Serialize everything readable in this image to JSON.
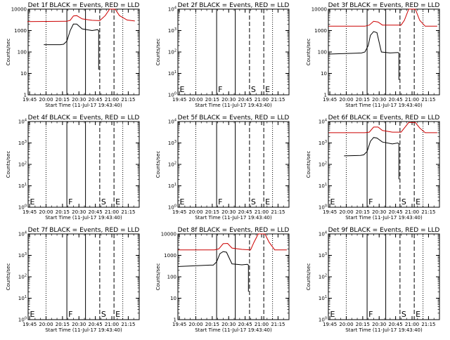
{
  "chart_data": [
    {
      "type": "line",
      "title": "Det 1f BLACK = Events, RED = LLD",
      "xlabel": "Start Time (11-Jul-17 19:43:40)",
      "ylabel": "Counts/sec",
      "yscale": "log",
      "ylim": [
        1,
        10000
      ],
      "ytick_labels": [
        "1",
        "10",
        "100",
        "1000",
        "10000"
      ],
      "xlim": [
        "19:43:40",
        "21:25:00"
      ],
      "xtick_labels": [
        "19:45",
        "20:00",
        "20:15",
        "20:30",
        "20:45",
        "21:00",
        "21:15"
      ],
      "markers": [
        {
          "time": "20:00",
          "label": "",
          "style": "dotted"
        },
        {
          "time": "20:19",
          "label": "",
          "style": "solid"
        },
        {
          "time": "20:36",
          "label": "",
          "style": "solid"
        },
        {
          "time": "20:49",
          "label": "",
          "style": "dashed"
        },
        {
          "time": "21:02",
          "label": "",
          "style": "dashed"
        },
        {
          "time": "21:10",
          "label": "",
          "style": "dotted"
        }
      ],
      "series": [
        {
          "color": "#000000",
          "x": [
            "19:58",
            "20:13",
            "20:16",
            "20:19",
            "20:22",
            "20:25",
            "20:28",
            "20:33",
            "20:42",
            "20:47",
            "20:48",
            "20:48"
          ],
          "y": [
            220,
            220,
            230,
            320,
            1000,
            2000,
            2000,
            1200,
            1000,
            1100,
            1000,
            15
          ]
        },
        {
          "color": "#cc0000",
          "x": [
            "19:43",
            "20:19",
            "20:22",
            "20:25",
            "20:28",
            "20:33",
            "20:42",
            "20:49",
            "20:54",
            "20:58",
            "21:03",
            "21:07",
            "21:14",
            "21:21"
          ],
          "y": [
            2600,
            2700,
            3000,
            4800,
            5000,
            3500,
            3000,
            2900,
            5000,
            10500,
            10500,
            5000,
            3100,
            2800
          ]
        }
      ]
    },
    {
      "type": "line",
      "title": "Det 2f BLACK = Events, RED = LLD",
      "xlabel": "Start Time (11-Jul-17 19:43:40)",
      "ylabel": "Counts/sec",
      "yscale": "log",
      "ylim": [
        1,
        10000
      ],
      "ytick_labels": [
        "10^0",
        "10^1",
        "10^2",
        "10^3",
        "10^4"
      ],
      "xlim": [
        "19:43:40",
        "21:25:00"
      ],
      "xtick_labels": [
        "19:45",
        "20:00",
        "20:15",
        "20:30",
        "20:45",
        "21:00",
        "21:15"
      ],
      "markers": [
        {
          "time": "19:44",
          "label": "E",
          "style": "none"
        },
        {
          "time": "20:00",
          "label": "",
          "style": "dotted"
        },
        {
          "time": "20:19",
          "label": "F",
          "style": "solid"
        },
        {
          "time": "20:36",
          "label": "",
          "style": "solid"
        },
        {
          "time": "20:49",
          "label": "S",
          "style": "dashed"
        },
        {
          "time": "21:02",
          "label": "E",
          "style": "dashed"
        },
        {
          "time": "21:10",
          "label": "",
          "style": "dotted"
        }
      ],
      "series": []
    },
    {
      "type": "line",
      "title": "Det 3f BLACK = Events, RED = LLD",
      "xlabel": "Start Time (11-Jul-17 19:43:40)",
      "ylabel": "Counts/sec",
      "yscale": "log",
      "ylim": [
        1,
        10000
      ],
      "ytick_labels": [
        "1",
        "10",
        "100",
        "1000",
        "10000"
      ],
      "xlim": [
        "19:43:40",
        "21:25:00"
      ],
      "xtick_labels": [
        "19:45",
        "20:00",
        "20:15",
        "20:30",
        "20:45",
        "21:00",
        "21:15"
      ],
      "markers": [
        {
          "time": "20:00",
          "label": "",
          "style": "dotted"
        },
        {
          "time": "20:19",
          "label": "",
          "style": "solid"
        },
        {
          "time": "20:36",
          "label": "",
          "style": "solid"
        },
        {
          "time": "20:49",
          "label": "",
          "style": "dashed"
        },
        {
          "time": "21:02",
          "label": "",
          "style": "dashed"
        },
        {
          "time": "21:10",
          "label": "",
          "style": "dotted"
        }
      ],
      "series": [
        {
          "color": "#000000",
          "x": [
            "19:44",
            "20:14",
            "20:17",
            "20:20",
            "20:22",
            "20:25",
            "20:28",
            "20:32",
            "20:40",
            "20:47",
            "20:48",
            "20:48"
          ],
          "y": [
            80,
            90,
            100,
            200,
            600,
            900,
            800,
            100,
            90,
            95,
            90,
            5
          ]
        },
        {
          "color": "#cc0000",
          "x": [
            "19:44",
            "20:17",
            "20:21",
            "20:25",
            "20:29",
            "20:33",
            "20:42",
            "20:50",
            "20:53",
            "20:57",
            "21:03",
            "21:07",
            "21:12",
            "21:23"
          ],
          "y": [
            1600,
            1600,
            1800,
            2700,
            2500,
            1800,
            1800,
            1800,
            3000,
            10500,
            10500,
            3000,
            1600,
            1600
          ]
        }
      ]
    },
    {
      "type": "line",
      "title": "Det 4f BLACK = Events, RED = LLD",
      "xlabel": "Start Time (11-Jul-17 19:43:40)",
      "ylabel": "Counts/sec",
      "yscale": "log",
      "ylim": [
        1,
        10000
      ],
      "ytick_labels": [
        "10^0",
        "10^1",
        "10^2",
        "10^3",
        "10^4"
      ],
      "xlim": [
        "19:43:40",
        "21:25:00"
      ],
      "xtick_labels": [
        "19:45",
        "20:00",
        "20:15",
        "20:30",
        "20:45",
        "21:00",
        "21:15"
      ],
      "markers": [
        {
          "time": "19:44",
          "label": "E",
          "style": "none"
        },
        {
          "time": "20:00",
          "label": "",
          "style": "dotted"
        },
        {
          "time": "20:19",
          "label": "F",
          "style": "solid"
        },
        {
          "time": "20:36",
          "label": "",
          "style": "solid"
        },
        {
          "time": "20:49",
          "label": "S",
          "style": "dashed"
        },
        {
          "time": "21:02",
          "label": "E",
          "style": "dashed"
        },
        {
          "time": "21:10",
          "label": "",
          "style": "dotted"
        }
      ],
      "series": []
    },
    {
      "type": "line",
      "title": "Det 5f BLACK = Events, RED = LLD",
      "xlabel": "Start Time (11-Jul-17 19:43:40)",
      "ylabel": "Counts/sec",
      "yscale": "log",
      "ylim": [
        1,
        10000
      ],
      "ytick_labels": [
        "10^0",
        "10^1",
        "10^2",
        "10^3",
        "10^4"
      ],
      "xlim": [
        "19:43:40",
        "21:25:00"
      ],
      "xtick_labels": [
        "19:45",
        "20:00",
        "20:15",
        "20:30",
        "20:45",
        "21:00",
        "21:15"
      ],
      "markers": [
        {
          "time": "19:44",
          "label": "E",
          "style": "none"
        },
        {
          "time": "20:00",
          "label": "",
          "style": "dotted"
        },
        {
          "time": "20:19",
          "label": "F",
          "style": "solid"
        },
        {
          "time": "20:36",
          "label": "",
          "style": "solid"
        },
        {
          "time": "20:49",
          "label": "S",
          "style": "dashed"
        },
        {
          "time": "21:02",
          "label": "E",
          "style": "dashed"
        },
        {
          "time": "21:10",
          "label": "",
          "style": "dotted"
        }
      ],
      "series": []
    },
    {
      "type": "line",
      "title": "Det 6f BLACK = Events, RED = LLD",
      "xlabel": "Start Time (11-Jul-17 19:43:40)",
      "ylabel": "Counts/sec",
      "yscale": "log",
      "ylim": [
        1,
        10000
      ],
      "ytick_labels": [
        "10^0",
        "10^1",
        "10^2",
        "10^3",
        "10^4"
      ],
      "xlim": [
        "19:43:40",
        "21:25:00"
      ],
      "xtick_labels": [
        "19:45",
        "20:00",
        "20:15",
        "20:30",
        "20:45",
        "21:00",
        "21:15"
      ],
      "markers": [
        {
          "time": "19:44",
          "label": "E",
          "style": "none"
        },
        {
          "time": "20:00",
          "label": "",
          "style": "dotted"
        },
        {
          "time": "20:19",
          "label": "F",
          "style": "solid"
        },
        {
          "time": "20:36",
          "label": "",
          "style": "solid"
        },
        {
          "time": "20:49",
          "label": "S",
          "style": "dashed"
        },
        {
          "time": "21:02",
          "label": "E",
          "style": "dashed"
        },
        {
          "time": "21:10",
          "label": "",
          "style": "dotted"
        }
      ],
      "series": [
        {
          "color": "#000000",
          "x": [
            "19:58",
            "20:13",
            "20:16",
            "20:19",
            "20:22",
            "20:25",
            "20:28",
            "20:33",
            "20:42",
            "20:47",
            "20:48",
            "20:48"
          ],
          "y": [
            250,
            260,
            280,
            400,
            1200,
            1800,
            1700,
            1100,
            900,
            1000,
            900,
            20
          ]
        },
        {
          "color": "#cc0000",
          "x": [
            "19:44",
            "20:17",
            "20:21",
            "20:25",
            "20:29",
            "20:33",
            "20:42",
            "20:50",
            "20:53",
            "20:57",
            "21:03",
            "21:07",
            "21:12",
            "21:23"
          ],
          "y": [
            3000,
            3000,
            3200,
            5500,
            5500,
            3800,
            3200,
            3200,
            5000,
            9000,
            9000,
            5000,
            3000,
            3000
          ]
        }
      ]
    },
    {
      "type": "line",
      "title": "Det 7f BLACK = Events, RED = LLD",
      "xlabel": "Start Time (11-Jul-17 19:43:40)",
      "ylabel": "Counts/sec",
      "yscale": "log",
      "ylim": [
        1,
        10000
      ],
      "ytick_labels": [
        "10^0",
        "10^1",
        "10^2",
        "10^3",
        "10^4"
      ],
      "xlim": [
        "19:43:40",
        "21:25:00"
      ],
      "xtick_labels": [
        "19:45",
        "20:00",
        "20:15",
        "20:30",
        "20:45",
        "21:00",
        "21:15"
      ],
      "markers": [
        {
          "time": "19:44",
          "label": "E",
          "style": "none"
        },
        {
          "time": "20:00",
          "label": "",
          "style": "dotted"
        },
        {
          "time": "20:19",
          "label": "F",
          "style": "solid"
        },
        {
          "time": "20:36",
          "label": "",
          "style": "solid"
        },
        {
          "time": "20:49",
          "label": "S",
          "style": "dashed"
        },
        {
          "time": "21:02",
          "label": "E",
          "style": "dashed"
        },
        {
          "time": "21:10",
          "label": "",
          "style": "dotted"
        }
      ],
      "series": []
    },
    {
      "type": "line",
      "title": "Det 8f BLACK = Events, RED = LLD",
      "xlabel": "Start Time (11-Jul-17 19:43:40)",
      "ylabel": "Counts/sec",
      "yscale": "log",
      "ylim": [
        1,
        10000
      ],
      "ytick_labels": [
        "1",
        "10",
        "100",
        "1000",
        "10000"
      ],
      "xlim": [
        "19:43:40",
        "21:25:00"
      ],
      "xtick_labels": [
        "19:45",
        "20:00",
        "20:15",
        "20:30",
        "20:45",
        "21:00",
        "21:15"
      ],
      "markers": [
        {
          "time": "20:00",
          "label": "",
          "style": "dotted"
        },
        {
          "time": "20:19",
          "label": "",
          "style": "solid"
        },
        {
          "time": "20:36",
          "label": "",
          "style": "solid"
        },
        {
          "time": "20:49",
          "label": "",
          "style": "dashed"
        },
        {
          "time": "21:02",
          "label": "",
          "style": "dashed"
        },
        {
          "time": "21:10",
          "label": "",
          "style": "dotted"
        }
      ],
      "series": [
        {
          "color": "#000000",
          "x": [
            "19:44",
            "20:13",
            "20:16",
            "20:19",
            "20:22",
            "20:25",
            "20:28",
            "20:33",
            "20:42",
            "20:47",
            "20:48",
            "20:48"
          ],
          "y": [
            300,
            350,
            350,
            500,
            1200,
            1500,
            1400,
            400,
            360,
            380,
            350,
            20
          ]
        },
        {
          "color": "#cc0000",
          "x": [
            "19:44",
            "20:17",
            "20:21",
            "20:25",
            "20:29",
            "20:33",
            "20:42",
            "20:50",
            "20:53",
            "20:57",
            "21:03",
            "21:07",
            "21:12",
            "21:23"
          ],
          "y": [
            1800,
            1800,
            2000,
            3500,
            3600,
            2200,
            1900,
            1800,
            4000,
            10000,
            10000,
            4000,
            1800,
            1800
          ]
        }
      ]
    },
    {
      "type": "line",
      "title": "Det 9f BLACK = Events, RED = LLD",
      "xlabel": "Start Time (11-Jul-17 19:43:40)",
      "ylabel": "Counts/sec",
      "yscale": "log",
      "ylim": [
        1,
        10000
      ],
      "ytick_labels": [
        "10^0",
        "10^1",
        "10^2",
        "10^3",
        "10^4"
      ],
      "xlim": [
        "19:43:40",
        "21:25:00"
      ],
      "xtick_labels": [
        "19:45",
        "20:00",
        "20:15",
        "20:30",
        "20:45",
        "21:00",
        "21:15"
      ],
      "markers": [
        {
          "time": "19:44",
          "label": "E",
          "style": "none"
        },
        {
          "time": "20:00",
          "label": "",
          "style": "dotted"
        },
        {
          "time": "20:19",
          "label": "F",
          "style": "solid"
        },
        {
          "time": "20:36",
          "label": "",
          "style": "solid"
        },
        {
          "time": "20:49",
          "label": "S",
          "style": "dashed"
        },
        {
          "time": "21:02",
          "label": "E",
          "style": "dashed"
        },
        {
          "time": "21:10",
          "label": "",
          "style": "dotted"
        }
      ],
      "series": []
    }
  ]
}
